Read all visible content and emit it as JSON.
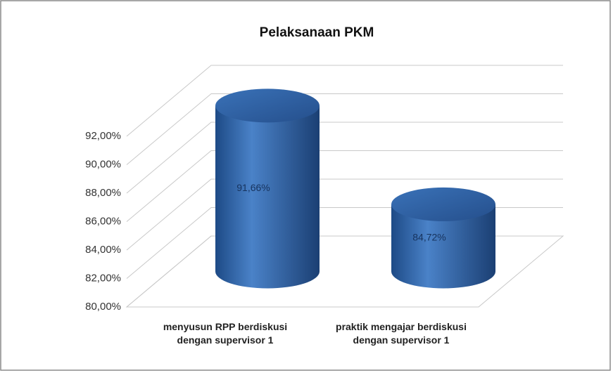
{
  "chart_data": {
    "type": "bar",
    "title": "Pelaksanaan PKM",
    "categories": [
      "menyusun RPP berdiskusi dengan supervisor 1",
      "praktik mengajar berdiskusi dengan supervisor 1"
    ],
    "values": [
      91.66,
      84.72
    ],
    "value_labels": [
      "91,66%",
      "84,72%"
    ],
    "color": "#2e63a8",
    "ylim": [
      80,
      92
    ],
    "yticks": [
      {
        "value": 80,
        "label": "80,00%"
      },
      {
        "value": 82,
        "label": "82,00%"
      },
      {
        "value": 84,
        "label": "84,00%"
      },
      {
        "value": 86,
        "label": "86,00%"
      },
      {
        "value": 88,
        "label": "88,00%"
      },
      {
        "value": 90,
        "label": "90,00%"
      },
      {
        "value": 92,
        "label": "92,00%"
      }
    ],
    "grid": true
  }
}
